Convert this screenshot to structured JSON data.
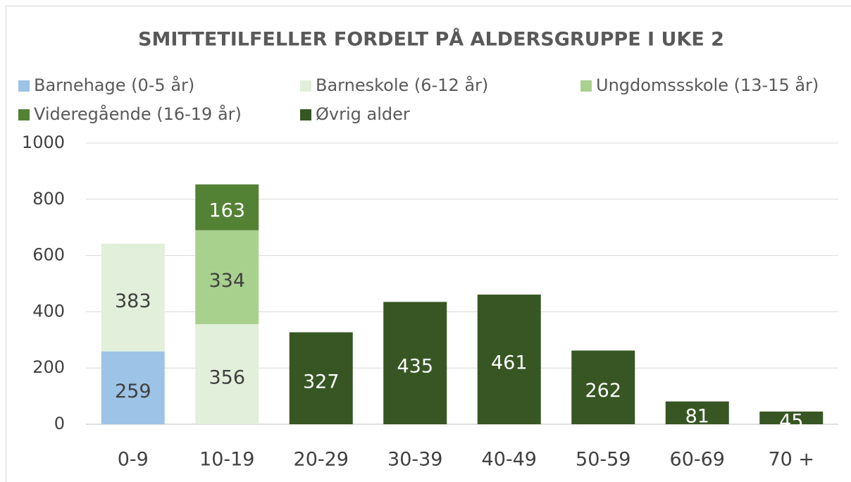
{
  "chart_data": {
    "type": "bar",
    "stacked": true,
    "title": "SMITTETILFELLER FORDELT PÅ ALDERSGRUPPE I UKE 2",
    "categories": [
      "0-9",
      "10-19",
      "20-29",
      "30-39",
      "40-49",
      "50-59",
      "60-69",
      "70 +"
    ],
    "series": [
      {
        "name": "Barnehage (0-5 år)",
        "color": "#9dc3e6",
        "values": [
          259,
          null,
          null,
          null,
          null,
          null,
          null,
          null
        ]
      },
      {
        "name": "Barneskole (6-12 år)",
        "color": "#e2efda",
        "values": [
          383,
          356,
          null,
          null,
          null,
          null,
          null,
          null
        ]
      },
      {
        "name": "Ungdomssskole (13-15 år)",
        "color": "#a9d18e",
        "values": [
          null,
          334,
          null,
          null,
          null,
          null,
          null,
          null
        ]
      },
      {
        "name": "Videregående (16-19 år)",
        "color": "#548235",
        "values": [
          null,
          163,
          null,
          null,
          null,
          null,
          null,
          null
        ]
      },
      {
        "name": "Øvrig alder",
        "color": "#375623",
        "values": [
          null,
          null,
          327,
          435,
          461,
          262,
          81,
          45
        ]
      }
    ],
    "ylim": [
      0,
      1000
    ],
    "yticks": [
      0,
      200,
      400,
      600,
      800,
      1000
    ],
    "grid": true
  }
}
